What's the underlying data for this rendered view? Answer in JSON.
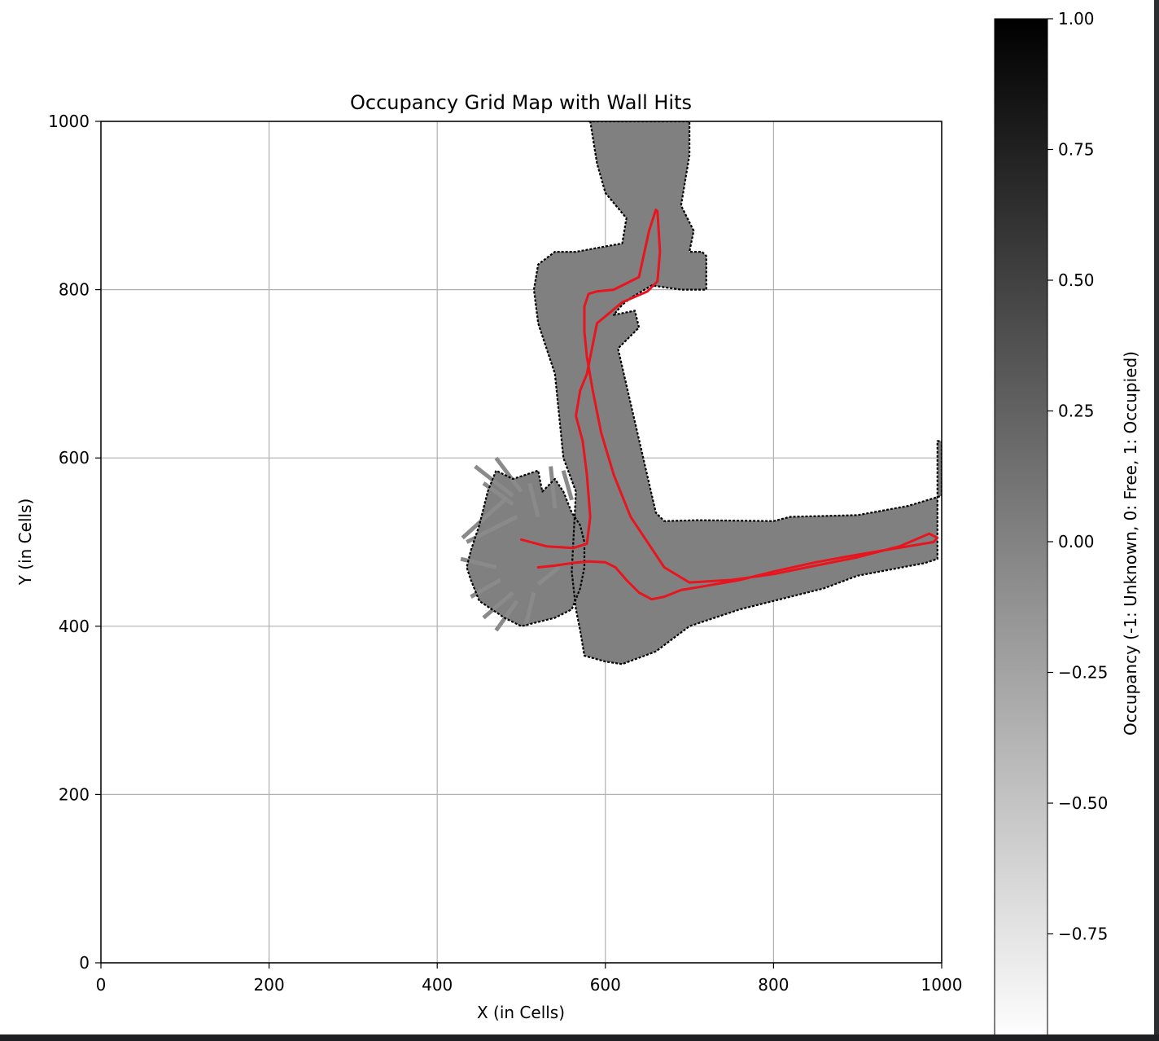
{
  "chart_data": {
    "type": "heatmap",
    "title": "Occupancy Grid Map with Wall Hits",
    "xlabel": "X (in Cells)",
    "ylabel": "Y (in Cells)",
    "xlim": [
      0,
      1000
    ],
    "ylim": [
      0,
      1000
    ],
    "xticks": [
      0,
      200,
      400,
      600,
      800,
      1000
    ],
    "yticks": [
      0,
      200,
      400,
      600,
      800,
      1000
    ],
    "grid": true,
    "colorbar": {
      "label": "Occupancy (-1: Unknown, 0: Free, 1: Occupied)",
      "range": [
        -1,
        1
      ],
      "ticks": [
        1.0,
        0.75,
        0.5,
        0.25,
        0.0,
        -0.25,
        -0.5,
        -0.75
      ],
      "tick_labels": [
        "1.00",
        "0.75",
        "0.50",
        "0.25",
        "0.00",
        "−0.25",
        "−0.50",
        "−0.75"
      ],
      "colormap": "gray_r"
    },
    "colors": {
      "free": "#808080",
      "occupied": "#000000",
      "unknown": "#ffffff",
      "trajectory": "#e8141e"
    },
    "free_regions": [
      [
        [
          580,
          1000
        ],
        [
          600,
          1000
        ],
        [
          640,
          1000
        ],
        [
          665,
          1000
        ],
        [
          700,
          1000
        ],
        [
          700,
          960
        ],
        [
          690,
          900
        ],
        [
          705,
          870
        ],
        [
          700,
          845
        ],
        [
          715,
          845
        ],
        [
          720,
          840
        ],
        [
          720,
          800
        ],
        [
          690,
          800
        ],
        [
          655,
          805
        ],
        [
          630,
          790
        ],
        [
          620,
          782
        ],
        [
          610,
          770
        ],
        [
          635,
          775
        ],
        [
          640,
          755
        ],
        [
          615,
          730
        ],
        [
          660,
          535
        ],
        [
          670,
          525
        ],
        [
          710,
          526
        ],
        [
          800,
          525
        ],
        [
          820,
          530
        ],
        [
          900,
          532
        ],
        [
          960,
          543
        ],
        [
          1000,
          555
        ],
        [
          1000,
          620
        ],
        [
          995,
          620
        ],
        [
          995,
          480
        ],
        [
          980,
          475
        ],
        [
          900,
          460
        ],
        [
          860,
          445
        ],
        [
          800,
          430
        ],
        [
          760,
          420
        ],
        [
          700,
          400
        ],
        [
          660,
          370
        ],
        [
          620,
          355
        ],
        [
          600,
          358
        ],
        [
          575,
          365
        ],
        [
          570,
          395
        ],
        [
          565,
          420
        ],
        [
          560,
          465
        ],
        [
          565,
          560
        ],
        [
          550,
          600
        ],
        [
          545,
          650
        ],
        [
          540,
          700
        ],
        [
          520,
          760
        ],
        [
          515,
          800
        ],
        [
          520,
          830
        ],
        [
          540,
          845
        ],
        [
          565,
          845
        ],
        [
          620,
          855
        ],
        [
          625,
          885
        ],
        [
          600,
          915
        ],
        [
          590,
          950
        ],
        [
          582,
          1000
        ]
      ],
      [
        [
          440,
          490
        ],
        [
          450,
          520
        ],
        [
          460,
          560
        ],
        [
          470,
          585
        ],
        [
          490,
          575
        ],
        [
          505,
          580
        ],
        [
          520,
          585
        ],
        [
          525,
          560
        ],
        [
          540,
          575
        ],
        [
          550,
          560
        ],
        [
          560,
          535
        ],
        [
          570,
          520
        ],
        [
          575,
          500
        ],
        [
          575,
          470
        ],
        [
          570,
          445
        ],
        [
          560,
          420
        ],
        [
          540,
          410
        ],
        [
          520,
          405
        ],
        [
          500,
          400
        ],
        [
          480,
          410
        ],
        [
          465,
          420
        ],
        [
          450,
          430
        ],
        [
          440,
          455
        ],
        [
          435,
          470
        ]
      ]
    ],
    "rays": [
      [
        [
          430,
          505
        ],
        [
          480,
          550
        ]
      ],
      [
        [
          435,
          500
        ],
        [
          495,
          530
        ]
      ],
      [
        [
          428,
          480
        ],
        [
          470,
          470
        ]
      ],
      [
        [
          440,
          435
        ],
        [
          475,
          455
        ]
      ],
      [
        [
          455,
          410
        ],
        [
          490,
          440
        ]
      ],
      [
        [
          470,
          395
        ],
        [
          495,
          430
        ]
      ],
      [
        [
          505,
          400
        ],
        [
          515,
          440
        ]
      ],
      [
        [
          455,
          570
        ],
        [
          490,
          545
        ]
      ],
      [
        [
          445,
          590
        ],
        [
          490,
          555
        ]
      ],
      [
        [
          470,
          600
        ],
        [
          500,
          560
        ]
      ],
      [
        [
          510,
          570
        ],
        [
          520,
          530
        ]
      ],
      [
        [
          535,
          590
        ],
        [
          540,
          540
        ]
      ],
      [
        [
          550,
          585
        ],
        [
          560,
          550
        ]
      ],
      [
        [
          520,
          450
        ],
        [
          545,
          470
        ]
      ]
    ],
    "trajectory": {
      "x": [
        500,
        530,
        562,
        578,
        582,
        578,
        573,
        565,
        570,
        578,
        590,
        620,
        650,
        662,
        665,
        662,
        660,
        652,
        640,
        610,
        590,
        580,
        575,
        575,
        578,
        585,
        595,
        610,
        630,
        650,
        670,
        700,
        750,
        800,
        850,
        900,
        950,
        985,
        995,
        990,
        960,
        900,
        850,
        800,
        760,
        720,
        690,
        670,
        655,
        640,
        625,
        612,
        600,
        580,
        560,
        540,
        520
      ],
      "y": [
        503,
        495,
        493,
        498,
        530,
        580,
        620,
        650,
        680,
        700,
        760,
        785,
        798,
        810,
        845,
        893,
        895,
        870,
        815,
        800,
        798,
        795,
        780,
        750,
        720,
        680,
        630,
        580,
        530,
        500,
        470,
        452,
        455,
        462,
        472,
        482,
        495,
        510,
        505,
        500,
        495,
        485,
        476,
        465,
        455,
        448,
        443,
        435,
        432,
        440,
        455,
        470,
        476,
        477,
        475,
        472,
        470
      ]
    }
  },
  "ui": {
    "title": "Occupancy Grid Map with Wall Hits"
  }
}
